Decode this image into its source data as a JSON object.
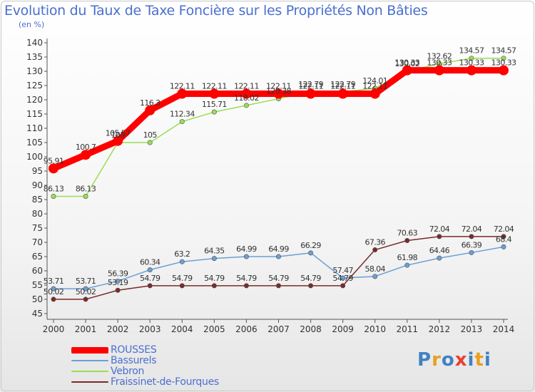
{
  "title": "Evolution du Taux de Taxe Foncière sur les Propriétés Non Bâties",
  "unit_label": "(en %)",
  "logo_text": "Proxiti",
  "chart_data": {
    "type": "line",
    "title": "Evolution du Taux de Taxe Foncière sur les Propriétés Non Bâties",
    "ylabel": "(en %)",
    "xlabel": "",
    "ylim": [
      45,
      140
    ],
    "ytick_step": 5,
    "grid": false,
    "legend_position": "bottom-left",
    "categories": [
      "2000",
      "2001",
      "2002",
      "2003",
      "2004",
      "2005",
      "2006",
      "2007",
      "2008",
      "2009",
      "2010",
      "2011",
      "2012",
      "2013",
      "2014"
    ],
    "series": [
      {
        "name": "ROUSSES",
        "color": "#ff0000",
        "values": [
          95.91,
          100.7,
          105.57,
          116.3,
          122.11,
          122.11,
          122.11,
          122.11,
          122.11,
          122.11,
          122.11,
          130.33,
          130.33,
          130.33,
          130.33
        ],
        "labels": [
          "95.91",
          "100.7",
          "105.57",
          "116.3",
          "122.11",
          "122.11",
          "122.11",
          "122.11",
          "122.11",
          "122.11",
          "122.11",
          "130.33",
          "130.33",
          "130.33",
          "130.33"
        ]
      },
      {
        "name": "Bassurels",
        "color": "#6b9fd4",
        "values": [
          53.71,
          53.71,
          56.39,
          60.34,
          63.2,
          64.35,
          64.99,
          64.99,
          66.29,
          57.47,
          58.04,
          61.98,
          64.46,
          66.39,
          68.4
        ],
        "labels": [
          "53.71",
          "53.71",
          "56.39",
          "60.34",
          "63.2",
          "64.35",
          "64.99",
          "64.99",
          "66.29",
          "57.47",
          "58.04",
          "61.98",
          "64.46",
          "66.39",
          "68.4"
        ]
      },
      {
        "name": "Vebron",
        "color": "#99dd55",
        "values": [
          86.13,
          86.13,
          105,
          105,
          112.34,
          115.71,
          118.02,
          120.38,
          122.79,
          122.79,
          124.01,
          130.02,
          132.62,
          134.57,
          134.57
        ],
        "labels": [
          "86.13",
          "86.13",
          "105",
          "105",
          "112.34",
          "115.71",
          "118.02",
          "120.38",
          "122.79",
          "122.79",
          "124.01",
          "130.02",
          "132.62",
          "134.57",
          "134.57"
        ]
      },
      {
        "name": "Fraissinet-de-Fourques",
        "color": "#7a2a2a",
        "values": [
          50.02,
          50.02,
          53.19,
          54.79,
          54.79,
          54.79,
          54.79,
          54.79,
          54.79,
          54.79,
          67.36,
          70.63,
          72.04,
          72.04,
          72.04
        ],
        "labels": [
          "50.02",
          "50.02",
          "53.19",
          "54.79",
          "54.79",
          "54.79",
          "54.79",
          "54.79",
          "54.79",
          "54.79",
          "67.36",
          "70.63",
          "72.04",
          "72.04",
          "72.04"
        ]
      }
    ]
  }
}
